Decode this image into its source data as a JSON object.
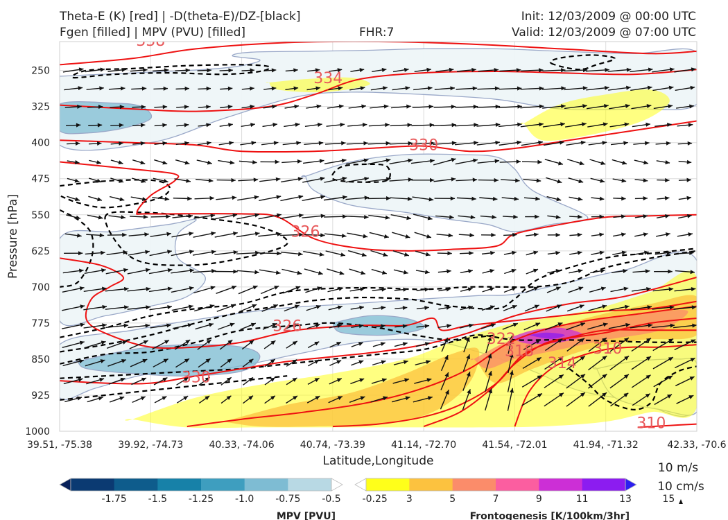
{
  "header": {
    "title_left_1": "Theta-E (K) [red] | -D(theta-E)/DZ-[black]",
    "title_left_2": "Fgen [filled] | MPV (PVU) [filled]",
    "fhr": "FHR:7",
    "init": "Init: 12/03/2009 @ 00:00 UTC",
    "valid": "Valid: 12/03/2009 @ 07:00 UTC"
  },
  "chart_data": {
    "type": "cross-section",
    "xlabel": "Latitude,Longitude",
    "ylabel": "Pressure [hPa]",
    "x_ticks": [
      "39.51, -75.38",
      "39.92, -74.73",
      "40.33, -74.06",
      "40.74, -73.39",
      "41.14, -72.70",
      "41.54, -72.01",
      "41.94, -71.32",
      "42.33, -70.6"
    ],
    "y_ticks": [
      250,
      325,
      400,
      475,
      550,
      625,
      700,
      775,
      850,
      925,
      1000
    ],
    "ylim": [
      1000,
      190
    ],
    "y_reversed": true,
    "grid": true,
    "theta_e_labels": [
      {
        "text": "338",
        "x": 1.0,
        "p": 190
      },
      {
        "text": "334",
        "x": 2.95,
        "p": 268
      },
      {
        "text": "330",
        "x": 4.0,
        "p": 407
      },
      {
        "text": "326",
        "x": 2.7,
        "p": 587
      },
      {
        "text": "326",
        "x": 2.5,
        "p": 783
      },
      {
        "text": "330",
        "x": 1.5,
        "p": 890
      },
      {
        "text": "322",
        "x": 4.85,
        "p": 810
      },
      {
        "text": "318",
        "x": 5.05,
        "p": 835
      },
      {
        "text": "314",
        "x": 5.52,
        "p": 860
      },
      {
        "text": "310",
        "x": 6.02,
        "p": 830
      },
      {
        "text": "310",
        "x": 6.5,
        "p": 985
      }
    ],
    "theta_e_lines": [
      {
        "label": "338",
        "x": [
          0,
          0.8,
          1.5,
          2.5,
          3.5,
          4.5,
          5.5,
          6.5,
          7
        ],
        "p": [
          238,
          225,
          205,
          192,
          190,
          195,
          205,
          215,
          210
        ]
      },
      {
        "label": "334",
        "x": [
          0,
          0.8,
          1.5,
          2.3,
          2.8,
          3.3,
          4.0,
          4.8,
          5.5,
          6.3,
          7
        ],
        "p": [
          322,
          330,
          335,
          325,
          300,
          268,
          255,
          252,
          255,
          258,
          248
        ]
      },
      {
        "label": "330",
        "x": [
          0,
          0.8,
          1.5,
          2.0,
          2.8,
          3.4,
          4.0,
          4.5,
          5.0,
          5.6,
          6.3,
          7
        ],
        "p": [
          395,
          400,
          405,
          418,
          418,
          412,
          407,
          418,
          412,
          395,
          375,
          355
        ]
      },
      {
        "label": "326",
        "x": [
          0,
          0.8,
          1.26,
          1.26,
          1.0,
          0.85,
          1.0,
          2.0,
          2.4,
          2.8,
          3.3,
          3.8,
          4.3,
          4.8,
          5.0,
          5.5,
          6.0,
          6.5,
          7
        ],
        "p": [
          440,
          455,
          465,
          480,
          510,
          545,
          548,
          548,
          555,
          600,
          620,
          625,
          622,
          615,
          590,
          570,
          555,
          552,
          550
        ]
      },
      {
        "label": "326",
        "x": [
          0,
          0.45,
          0.7,
          0.55,
          0.35,
          0.3,
          0.55,
          1.0,
          1.5,
          2.0,
          2.6,
          3.3,
          3.8,
          4.1,
          4.2,
          4.5,
          5.0,
          5.5,
          6.0,
          6.5,
          7
        ],
        "p": [
          640,
          655,
          680,
          700,
          725,
          770,
          800,
          825,
          825,
          815,
          790,
          780,
          780,
          765,
          790,
          780,
          770,
          760,
          750,
          745,
          730
        ]
      },
      {
        "label": "330",
        "x": [
          0,
          0.5,
          1.0,
          1.5,
          2.0,
          2.5,
          3.0,
          3.5,
          4.0,
          4.5,
          5.0,
          5.6,
          6.2,
          7
        ],
        "p": [
          895,
          900,
          900,
          885,
          870,
          855,
          845,
          835,
          820,
          795,
          760,
          735,
          720,
          680
        ]
      },
      {
        "label": "322",
        "x": [
          1.4,
          2.0,
          2.7,
          3.4,
          4.0,
          4.5,
          4.9,
          5.3,
          5.8,
          6.4,
          7
        ],
        "p": [
          990,
          975,
          960,
          940,
          910,
          870,
          820,
          790,
          770,
          755,
          740
        ]
      },
      {
        "label": "318",
        "x": [
          3.0,
          3.5,
          4.0,
          4.4,
          4.8,
          5.1,
          5.5,
          6.0,
          6.5,
          7
        ],
        "p": [
          990,
          985,
          970,
          945,
          900,
          840,
          810,
          795,
          775,
          765
        ]
      },
      {
        "label": "314",
        "x": [
          4.0,
          4.4,
          4.75,
          5.0,
          5.3,
          5.6,
          6.0,
          6.5,
          7
        ],
        "p": [
          990,
          960,
          910,
          860,
          820,
          805,
          790,
          790,
          790
        ]
      },
      {
        "label": "310",
        "x": [
          5.0,
          5.15,
          5.4,
          5.7,
          6.0,
          6.3,
          6.6,
          7
        ],
        "p": [
          990,
          920,
          870,
          845,
          830,
          825,
          825,
          820
        ]
      },
      {
        "label": "310",
        "x": [
          6.35,
          6.7,
          7
        ],
        "p": [
          992,
          988,
          985
        ]
      }
    ],
    "ddz_lines": [
      {
        "x": [
          0.15,
          0.6,
          1.2,
          1.8,
          2.2,
          2.3,
          2.0,
          1.4,
          0.8,
          0.3,
          0.15
        ],
        "p": [
          265,
          258,
          255,
          258,
          252,
          242,
          238,
          240,
          246,
          250,
          265
        ]
      },
      {
        "x": [
          5.4,
          5.7,
          5.9,
          6.1,
          5.85,
          5.5,
          5.4
        ],
        "p": [
          235,
          248,
          238,
          225,
          218,
          224,
          235
        ]
      },
      {
        "x": [
          3.0,
          3.3,
          3.6,
          3.6,
          3.4,
          3.1,
          3.0
        ],
        "p": [
          475,
          482,
          478,
          450,
          445,
          450,
          475
        ]
      },
      {
        "x": [
          0,
          0.5,
          1.0,
          1.2,
          1.15,
          0.9,
          0.5,
          0.2,
          0
        ],
        "p": [
          490,
          480,
          478,
          490,
          510,
          525,
          535,
          525,
          510
        ]
      },
      {
        "x": [
          0,
          0.2,
          0.35,
          0.35,
          0.2,
          0
        ],
        "p": [
          540,
          560,
          590,
          640,
          690,
          700
        ]
      },
      {
        "x": [
          0.5,
          0.9,
          1.5,
          2.2,
          2.5,
          2.0,
          1.4,
          0.8,
          0.5
        ],
        "p": [
          555,
          545,
          555,
          575,
          610,
          640,
          655,
          640,
          555
        ]
      },
      {
        "x": [
          0,
          0.5,
          1.0,
          1.5,
          2.0,
          2.5,
          3.0,
          3.5,
          4.0,
          4.5,
          4.9,
          5.2,
          5.6,
          6.0,
          6.5,
          7
        ],
        "p": [
          805,
          785,
          760,
          745,
          735,
          710,
          703,
          702,
          705,
          700,
          700,
          700,
          690,
          660,
          640,
          625
        ]
      },
      {
        "x": [
          0,
          0.5,
          1.0,
          1.5,
          2.0,
          2.4,
          2.8,
          3.3,
          3.8,
          4.0,
          4.3,
          4.8,
          5.0,
          5.3,
          6.0,
          6.5,
          7
        ],
        "p": [
          835,
          820,
          800,
          775,
          752,
          740,
          728,
          722,
          725,
          730,
          740,
          745,
          725,
          680,
          640,
          630,
          620
        ]
      },
      {
        "x": [
          0,
          0.5,
          1.0,
          1.5,
          2.0,
          2.6,
          3.0,
          3.5,
          3.9,
          4.3,
          4.6,
          5.0,
          5.5,
          6.0,
          6.5,
          7
        ],
        "p": [
          860,
          840,
          835,
          815,
          790,
          780,
          775,
          785,
          800,
          810,
          800,
          810,
          810,
          812,
          815,
          815
        ]
      },
      {
        "x": [
          0,
          0.5,
          1.0,
          1.5,
          2.0,
          2.5,
          3.0,
          3.5,
          4.0,
          4.4,
          4.8
        ],
        "p": [
          890,
          885,
          880,
          875,
          870,
          860,
          850,
          840,
          830,
          810,
          800
        ]
      },
      {
        "x": [
          0,
          0.5,
          1.0,
          1.5,
          2.0,
          2.5
        ],
        "p": [
          935,
          925,
          915,
          905,
          895,
          885
        ]
      },
      {
        "x": [
          5.6,
          5.8,
          6.0,
          6.3,
          6.5,
          6.6,
          6.8,
          7
        ],
        "p": [
          870,
          900,
          935,
          955,
          940,
          900,
          875,
          865
        ]
      }
    ],
    "mpv_regions": [
      {
        "level": -0.25,
        "x": [
          0,
          0.8,
          1.6,
          2.0,
          2.2,
          1.9,
          2.1,
          2.8,
          3.4,
          4.0,
          4.8,
          5.5,
          6.3,
          7,
          7,
          6.3,
          5.5,
          4.8,
          4.0,
          3.2,
          2.6,
          1.8,
          1.0,
          0,
          0
        ],
        "p": [
          262,
          255,
          248,
          240,
          228,
          220,
          212,
          210,
          208,
          205,
          205,
          210,
          215,
          212,
          320,
          330,
          330,
          310,
          300,
          295,
          305,
          350,
          400,
          405,
          262
        ]
      },
      {
        "level": -0.25,
        "x": [
          2.7,
          3.2,
          3.8,
          4.4,
          4.8,
          5.0,
          5.2,
          5.8,
          5.4,
          5.0,
          4.7,
          4.3,
          3.8,
          3.2,
          2.8,
          2.7
        ],
        "p": [
          470,
          440,
          425,
          425,
          430,
          455,
          500,
          555,
          570,
          585,
          570,
          560,
          545,
          530,
          500,
          470
        ]
      },
      {
        "level": -0.5,
        "x": [
          0,
          0.6,
          0.9,
          1.0,
          0.7,
          0.3,
          0
        ],
        "p": [
          320,
          318,
          325,
          350,
          370,
          380,
          375
        ]
      },
      {
        "level": -0.25,
        "x": [
          0,
          0.6,
          1.2,
          1.5,
          1.3,
          1.3,
          1.6,
          1.4,
          1.0,
          0.5,
          0
        ],
        "p": [
          600,
          585,
          570,
          560,
          590,
          640,
          680,
          720,
          740,
          760,
          770
        ]
      },
      {
        "level": -0.25,
        "x": [
          0,
          0.8,
          1.6,
          2.4,
          3.2,
          4.0,
          4.6,
          5.0,
          5.6,
          6.2,
          7,
          7,
          6.3,
          5.7,
          5.2,
          4.6,
          4.0,
          3.3,
          2.6,
          1.8,
          1.0,
          0.4,
          0
        ],
        "p": [
          820,
          790,
          765,
          745,
          735,
          725,
          718,
          715,
          690,
          665,
          645,
          950,
          935,
          915,
          875,
          835,
          810,
          815,
          840,
          870,
          880,
          910,
          930
        ]
      },
      {
        "level": -0.5,
        "x": [
          0.2,
          0.8,
          1.4,
          2.0,
          2.2,
          2.0,
          1.4,
          0.8,
          0.3,
          0.2
        ],
        "p": [
          855,
          830,
          820,
          825,
          845,
          875,
          885,
          880,
          870,
          855
        ]
      },
      {
        "level": -0.5,
        "x": [
          3.0,
          3.4,
          3.8,
          4.0,
          3.6,
          3.1,
          3.0
        ],
        "p": [
          775,
          760,
          765,
          785,
          800,
          795,
          775
        ]
      },
      {
        "level": -0.25,
        "x": [
          5.9,
          6.3,
          6.8,
          7,
          7,
          6.6,
          6.1,
          5.9
        ],
        "p": [
          870,
          855,
          850,
          860,
          960,
          955,
          930,
          870
        ]
      }
    ],
    "fgen_regions": [
      {
        "level": 3,
        "x": [
          2.3,
          2.7,
          3.2,
          3.4,
          2.9,
          2.4,
          2.3
        ],
        "p": [
          275,
          268,
          265,
          280,
          295,
          290,
          275
        ]
      },
      {
        "level": 3,
        "x": [
          5.1,
          5.5,
          6.0,
          6.5,
          6.7,
          6.4,
          5.8,
          5.3,
          5.1
        ],
        "p": [
          360,
          320,
          300,
          290,
          315,
          355,
          385,
          395,
          360
        ]
      },
      {
        "level": 3,
        "x": [
          0.8,
          1.5,
          2.3,
          3.0,
          3.8,
          4.3,
          4.7,
          5.0,
          5.5,
          6.0,
          6.5,
          7,
          7,
          6.5,
          6.0,
          5.3,
          4.6,
          3.8,
          3.0,
          2.2,
          1.4,
          0.8
        ],
        "p": [
          975,
          930,
          900,
          880,
          850,
          815,
          790,
          775,
          760,
          740,
          710,
          680,
          950,
          960,
          980,
          990,
          992,
          992,
          992,
          992,
          992,
          975
        ]
      },
      {
        "level": 5,
        "x": [
          1.8,
          2.5,
          3.2,
          3.8,
          4.3,
          4.6,
          4.5,
          4.1,
          3.5,
          2.8,
          2.2,
          1.8
        ],
        "p": [
          980,
          945,
          920,
          880,
          840,
          830,
          900,
          960,
          985,
          990,
          990,
          980
        ]
      },
      {
        "level": 5,
        "x": [
          4.6,
          5.0,
          5.5,
          6.0,
          6.5,
          7,
          7,
          6.4,
          5.8,
          5.2,
          4.8,
          4.6
        ],
        "p": [
          860,
          810,
          780,
          755,
          735,
          720,
          800,
          810,
          830,
          870,
          900,
          860
        ]
      },
      {
        "level": 7,
        "x": [
          4.55,
          4.9,
          5.3,
          5.8,
          6.4,
          6.9,
          6.6,
          6.0,
          5.5,
          5.0,
          4.7,
          4.55
        ],
        "p": [
          850,
          815,
          790,
          770,
          755,
          750,
          790,
          810,
          830,
          850,
          870,
          850
        ]
      },
      {
        "level": 11,
        "x": [
          4.95,
          5.2,
          5.5,
          5.75,
          5.5,
          5.15,
          4.95
        ],
        "p": [
          805,
          790,
          785,
          800,
          815,
          818,
          805
        ]
      },
      {
        "level": 13,
        "x": [
          5.15,
          5.35,
          5.55,
          5.4,
          5.15
        ],
        "p": [
          800,
          795,
          800,
          808,
          800
        ]
      }
    ],
    "wind_reference": {
      "label_1": "10 m/s",
      "label_2": "10 cm/s"
    },
    "mpv_colorbar": {
      "title": "MPV [PVU]",
      "ticks": [
        "-1.75",
        "-1.5",
        "-1.25",
        "-1.0",
        "-0.75",
        "-0.5",
        "-0.25"
      ],
      "colors": [
        "#08215a",
        "#0b3a72",
        "#0e5c8c",
        "#1781a8",
        "#3e9ebf",
        "#7ebcd3",
        "#b8d9e4",
        "#ffffff"
      ]
    },
    "fgen_colorbar": {
      "title": "Frontogenesis [K/100km/3hr]",
      "ticks": [
        "3",
        "5",
        "7",
        "9",
        "11",
        "13",
        "15"
      ],
      "colors": [
        "#ffffff",
        "#ffff1a",
        "#fcc23f",
        "#fb8c6a",
        "#fb5ea0",
        "#cc2fd6",
        "#8c1cf0",
        "#2c1ff0"
      ]
    }
  }
}
